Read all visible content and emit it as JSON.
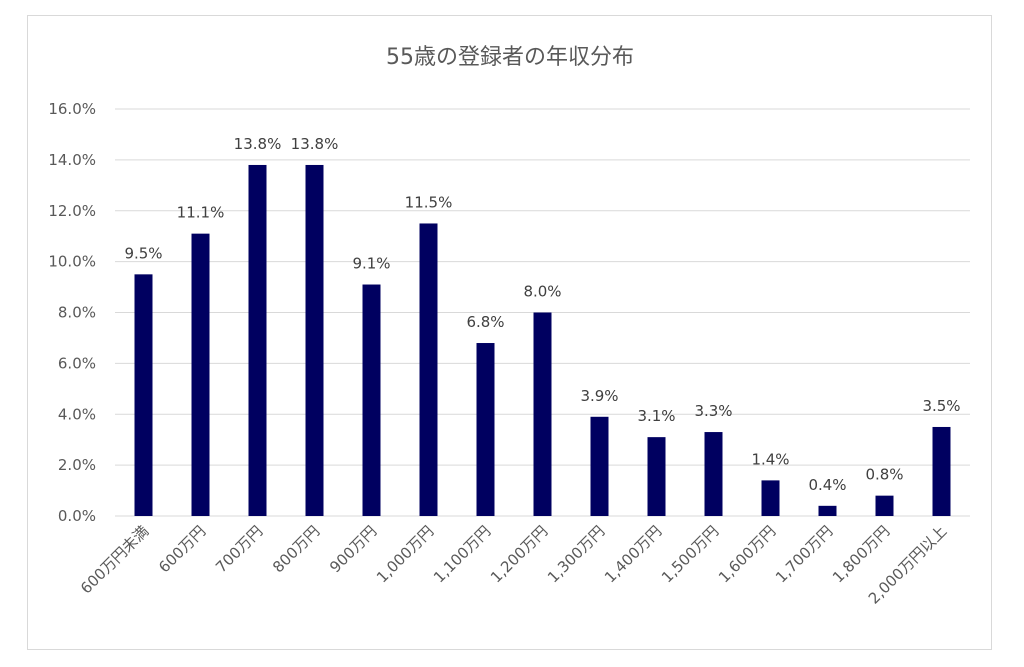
{
  "chart_data": {
    "type": "bar",
    "title": "55歳の登録者の年収分布",
    "xlabel": "",
    "ylabel": "",
    "categories": [
      "600万円未満",
      "600万円",
      "700万円",
      "800万円",
      "900万円",
      "1,000万円",
      "1,100万円",
      "1,200万円",
      "1,300万円",
      "1,400万円",
      "1,500万円",
      "1,600万円",
      "1,700万円",
      "1,800万円",
      "2,000万円以上"
    ],
    "values": [
      9.5,
      11.1,
      13.8,
      13.8,
      9.1,
      11.5,
      6.8,
      8.0,
      3.9,
      3.1,
      3.3,
      1.4,
      0.4,
      0.8,
      3.5
    ],
    "data_labels": [
      "9.5%",
      "11.1%",
      "13.8%",
      "13.8%",
      "9.1%",
      "11.5%",
      "6.8%",
      "8.0%",
      "3.9%",
      "3.1%",
      "3.3%",
      "1.4%",
      "0.4%",
      "0.8%",
      "3.5%"
    ],
    "ylim": [
      0,
      16
    ],
    "yticks": [
      "0.0%",
      "2.0%",
      "4.0%",
      "6.0%",
      "8.0%",
      "10.0%",
      "12.0%",
      "14.0%",
      "16.0%"
    ],
    "grid": true,
    "legend": "none",
    "bar_color": "#000060"
  }
}
